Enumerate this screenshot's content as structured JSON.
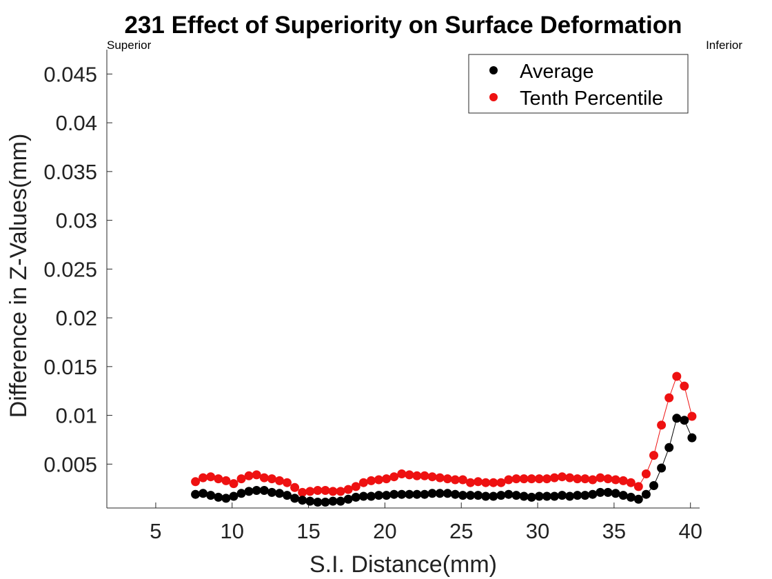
{
  "chart_data": {
    "type": "scatter",
    "title": "231  Effect of Superiority on Surface Deformation",
    "corner_left": "Superior",
    "corner_right": "Inferior",
    "xlabel": "S.I. Distance(mm)",
    "ylabel": "Difference in Z-Values(mm)",
    "xlim": [
      1.8,
      40.6
    ],
    "ylim": [
      0.0005,
      0.0475
    ],
    "xticks": [
      5,
      10,
      15,
      20,
      25,
      30,
      35,
      40
    ],
    "xtick_labels": [
      "5",
      "10",
      "15",
      "20",
      "25",
      "30",
      "35",
      "40"
    ],
    "yticks": [
      0.005,
      0.01,
      0.015,
      0.02,
      0.025,
      0.03,
      0.035,
      0.04,
      0.045
    ],
    "ytick_labels": [
      "0.005",
      "0.01",
      "0.015",
      "0.02",
      "0.025",
      "0.03",
      "0.035",
      "0.04",
      "0.045"
    ],
    "grid": false,
    "legend_position": "top-right",
    "x": [
      7.6,
      8.1,
      8.6,
      9.1,
      9.6,
      10.1,
      10.6,
      11.1,
      11.6,
      12.1,
      12.6,
      13.1,
      13.6,
      14.1,
      14.6,
      15.1,
      15.6,
      16.1,
      16.6,
      17.1,
      17.6,
      18.1,
      18.6,
      19.1,
      19.6,
      20.1,
      20.6,
      21.1,
      21.6,
      22.1,
      22.6,
      23.1,
      23.6,
      24.1,
      24.6,
      25.1,
      25.6,
      26.1,
      26.6,
      27.1,
      27.6,
      28.1,
      28.6,
      29.1,
      29.6,
      30.1,
      30.6,
      31.1,
      31.6,
      32.1,
      32.6,
      33.1,
      33.6,
      34.1,
      34.6,
      35.1,
      35.6,
      36.1,
      36.6,
      37.1,
      37.6,
      38.1,
      38.6,
      39.1,
      39.6,
      40.1
    ],
    "series": [
      {
        "name": "Average",
        "color": "#000000",
        "values": [
          0.0019,
          0.002,
          0.0018,
          0.0016,
          0.0015,
          0.0017,
          0.002,
          0.0022,
          0.0023,
          0.0023,
          0.0021,
          0.002,
          0.0018,
          0.0015,
          0.0013,
          0.0012,
          0.0011,
          0.0011,
          0.0012,
          0.0012,
          0.0014,
          0.0016,
          0.0017,
          0.0017,
          0.0018,
          0.0018,
          0.0019,
          0.0019,
          0.0019,
          0.0019,
          0.0019,
          0.002,
          0.002,
          0.002,
          0.0019,
          0.0018,
          0.0018,
          0.0018,
          0.0017,
          0.0017,
          0.0018,
          0.0019,
          0.0018,
          0.0017,
          0.0016,
          0.0017,
          0.0017,
          0.0017,
          0.0018,
          0.0017,
          0.0018,
          0.0018,
          0.0019,
          0.0021,
          0.0021,
          0.002,
          0.0018,
          0.0016,
          0.0014,
          0.0019,
          0.0028,
          0.0046,
          0.0067,
          0.0097,
          0.0095,
          0.0077
        ]
      },
      {
        "name": "Tenth Percentile",
        "color": "#ee1111",
        "values": [
          0.0032,
          0.0036,
          0.0037,
          0.0035,
          0.0033,
          0.003,
          0.0035,
          0.0038,
          0.0039,
          0.0036,
          0.0035,
          0.0033,
          0.0031,
          0.0026,
          0.0021,
          0.0022,
          0.0023,
          0.0023,
          0.0022,
          0.0022,
          0.0024,
          0.0027,
          0.0031,
          0.0033,
          0.0034,
          0.0035,
          0.0037,
          0.004,
          0.0039,
          0.0038,
          0.0038,
          0.0037,
          0.0036,
          0.0035,
          0.0034,
          0.0034,
          0.0031,
          0.0032,
          0.0031,
          0.0031,
          0.0031,
          0.0034,
          0.0035,
          0.0035,
          0.0035,
          0.0035,
          0.0035,
          0.0036,
          0.0037,
          0.0036,
          0.0035,
          0.0035,
          0.0034,
          0.0036,
          0.0035,
          0.0034,
          0.0033,
          0.0031,
          0.0027,
          0.004,
          0.0059,
          0.009,
          0.0118,
          0.014,
          0.013,
          0.0099
        ]
      }
    ]
  }
}
